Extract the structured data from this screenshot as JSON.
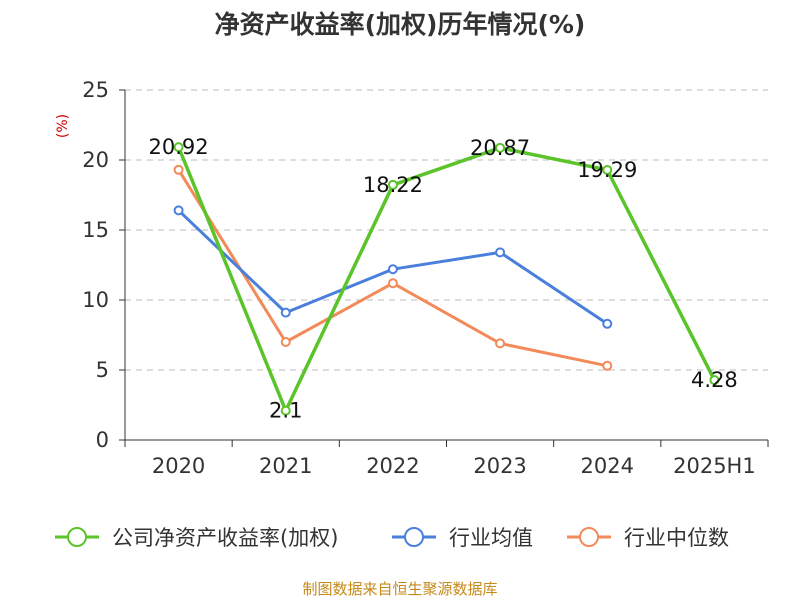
{
  "chart_data": {
    "type": "line",
    "title": "净资产收益率(加权)历年情况(%)",
    "ylabel": "(%)",
    "xlabel": "",
    "categories": [
      "2020",
      "2021",
      "2022",
      "2023",
      "2024",
      "2025H1"
    ],
    "ylim": [
      0,
      25
    ],
    "yticks": [
      0,
      5,
      10,
      15,
      20,
      25
    ],
    "grid": true,
    "legend_position": "bottom",
    "series": [
      {
        "name": "公司净资产收益率(加权)",
        "color": "#5ac42a",
        "values": [
          20.92,
          2.1,
          18.22,
          20.87,
          19.29,
          4.28
        ],
        "labels": [
          "20.92",
          "2.1",
          "18.22",
          "20.87",
          "19.29",
          "4.28"
        ]
      },
      {
        "name": "行业均值",
        "color": "#4a7fdc",
        "values": [
          16.4,
          9.1,
          12.2,
          13.4,
          8.3,
          null
        ]
      },
      {
        "name": "行业中位数",
        "color": "#f28a5a",
        "values": [
          19.3,
          7.0,
          11.2,
          6.9,
          5.3,
          null
        ]
      }
    ]
  },
  "footer": {
    "source": "制图数据来自恒生聚源数据库"
  }
}
